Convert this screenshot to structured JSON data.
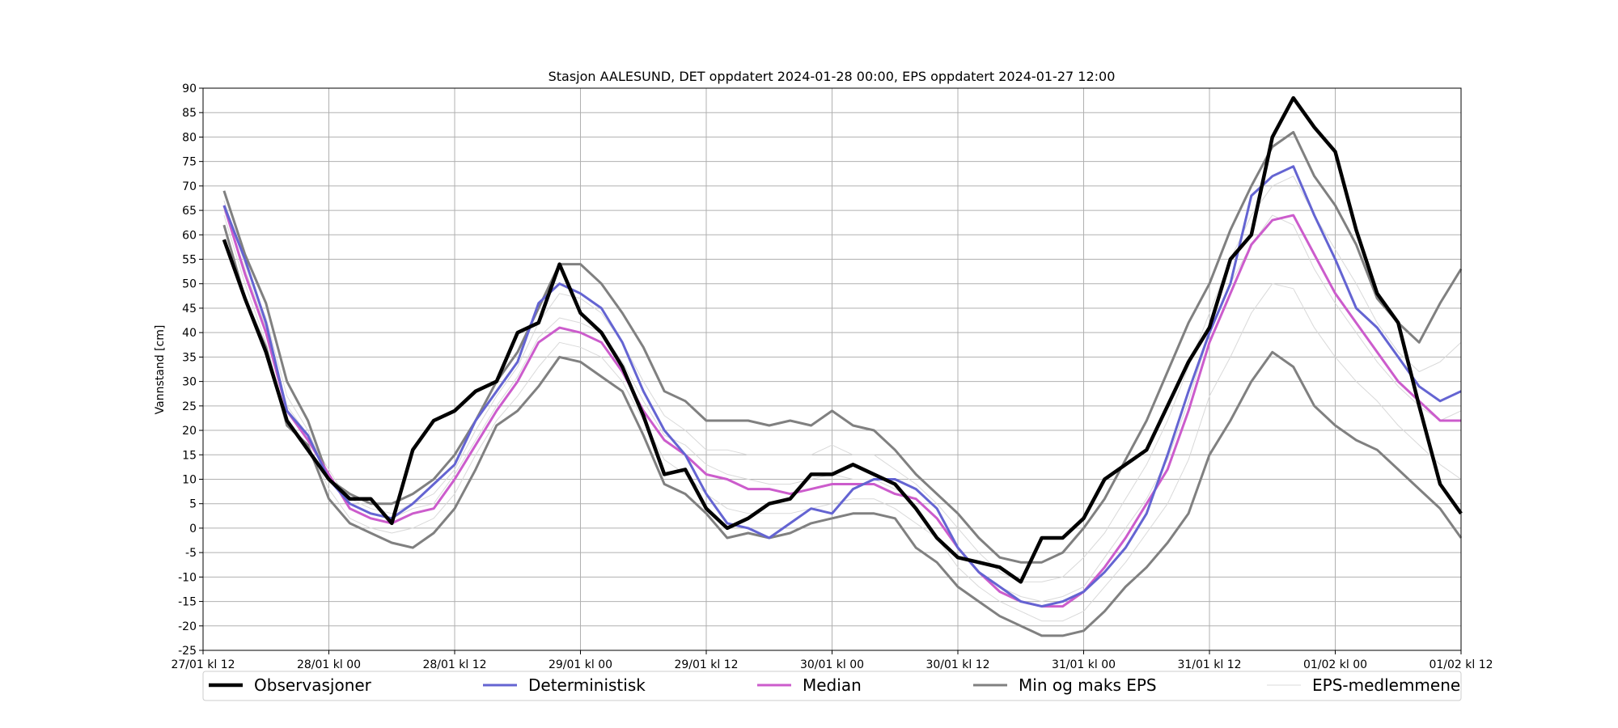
{
  "chart_data": {
    "type": "line",
    "title": "Stasjon AALESUND, DET oppdatert 2024-01-28 00:00, EPS oppdatert 2024-01-27 12:00",
    "y_label": "Vannstand [cm]",
    "grid": true,
    "xlim": [
      0,
      120
    ],
    "xticks": [
      {
        "value": 0,
        "label": "27/01 kl 12"
      },
      {
        "value": 12,
        "label": "28/01 kl 00"
      },
      {
        "value": 24,
        "label": "28/01 kl 12"
      },
      {
        "value": 36,
        "label": "29/01 kl 00"
      },
      {
        "value": 48,
        "label": "29/01 kl 12"
      },
      {
        "value": 60,
        "label": "30/01 kl 00"
      },
      {
        "value": 72,
        "label": "30/01 kl 12"
      },
      {
        "value": 84,
        "label": "31/01 kl 00"
      },
      {
        "value": 96,
        "label": "31/01 kl 12"
      },
      {
        "value": 108,
        "label": "01/02 kl 00"
      },
      {
        "value": 120,
        "label": "01/02 kl 12"
      }
    ],
    "ylim": [
      -25,
      90
    ],
    "yticks": [
      -25,
      -20,
      -15,
      -10,
      -5,
      0,
      5,
      10,
      15,
      20,
      25,
      30,
      35,
      40,
      45,
      50,
      55,
      60,
      65,
      70,
      75,
      80,
      85,
      90
    ],
    "x": [
      2,
      4,
      6,
      8,
      10,
      12,
      14,
      16,
      18,
      20,
      22,
      24,
      26,
      28,
      30,
      32,
      34,
      36,
      38,
      40,
      42,
      44,
      46,
      48,
      50,
      52,
      54,
      56,
      58,
      60,
      62,
      64,
      66,
      68,
      70,
      72,
      74,
      76,
      78,
      80,
      82,
      84,
      86,
      88,
      90,
      92,
      94,
      96,
      98,
      100,
      102,
      104,
      106,
      108,
      110,
      112,
      114,
      116,
      118,
      120
    ],
    "series": [
      {
        "name": "Observasjoner",
        "color": "#000000",
        "values": [
          59,
          47,
          36,
          22,
          16,
          10,
          6,
          6,
          1,
          16,
          22,
          24,
          28,
          30,
          40,
          42,
          54,
          44,
          40,
          33,
          23,
          11,
          12,
          4,
          0,
          2,
          5,
          6,
          11,
          11,
          13,
          11,
          9,
          4,
          -2,
          -6,
          -7,
          -8,
          -11,
          -2,
          -2,
          2,
          10,
          13,
          16,
          25,
          34,
          41,
          55,
          60,
          80,
          88,
          82,
          77,
          61,
          48,
          42,
          25,
          9,
          3
        ]
      },
      {
        "name": "Deterministisk",
        "color": "#6464d2",
        "values": [
          66,
          55,
          42,
          24,
          19,
          10,
          5,
          3,
          2,
          5,
          9,
          13,
          22,
          28,
          34,
          46,
          50,
          48,
          45,
          38,
          28,
          20,
          15,
          7,
          1,
          0,
          -2,
          1,
          4,
          3,
          8,
          10,
          10,
          8,
          4,
          -4,
          -9,
          -12,
          -15,
          -16,
          -15,
          -13,
          -9,
          -4,
          3,
          15,
          28,
          40,
          50,
          68,
          72,
          74,
          64,
          55,
          45,
          41,
          35,
          29,
          26,
          28
        ]
      },
      {
        "name": "Median",
        "color": "#cc5ccc",
        "values": [
          66,
          52,
          40,
          24,
          18,
          11,
          4,
          2,
          1,
          3,
          4,
          10,
          17,
          24,
          30,
          38,
          41,
          40,
          38,
          32,
          24,
          18,
          15,
          11,
          10,
          8,
          8,
          7,
          8,
          9,
          9,
          9,
          7,
          6,
          2,
          -4,
          -9,
          -13,
          -15,
          -16,
          -16,
          -13,
          -8,
          -2,
          5,
          12,
          24,
          38,
          48,
          58,
          63,
          64,
          56,
          48,
          42,
          36,
          30,
          26,
          22,
          22
        ]
      },
      {
        "name": "Min og maks EPS",
        "color": "#808080",
        "max": [
          69,
          56,
          46,
          30,
          22,
          10,
          7,
          5,
          5,
          7,
          10,
          15,
          22,
          30,
          36,
          45,
          54,
          54,
          50,
          44,
          37,
          28,
          26,
          22,
          22,
          22,
          21,
          22,
          21,
          24,
          21,
          20,
          16,
          11,
          7,
          3,
          -2,
          -6,
          -7,
          -7,
          -5,
          0,
          6,
          14,
          22,
          32,
          42,
          50,
          61,
          70,
          78,
          81,
          72,
          66,
          58,
          47,
          42,
          38,
          46,
          53
        ],
        "min": [
          62,
          47,
          37,
          21,
          17,
          6,
          1,
          -1,
          -3,
          -4,
          -1,
          4,
          12,
          21,
          24,
          29,
          35,
          34,
          31,
          28,
          19,
          9,
          7,
          3,
          -2,
          -1,
          -2,
          -1,
          1,
          2,
          3,
          3,
          2,
          -4,
          -7,
          -12,
          -15,
          -18,
          -20,
          -22,
          -22,
          -21,
          -17,
          -12,
          -8,
          -3,
          3,
          15,
          22,
          30,
          36,
          33,
          25,
          21,
          18,
          16,
          12,
          8,
          4,
          -2
        ]
      },
      {
        "name": "EPS-medlemmene",
        "color": "#d9d9d9",
        "members": [
          [
            67,
            54,
            43,
            27,
            20,
            10,
            6,
            4,
            3,
            5,
            7,
            12,
            20,
            27,
            33,
            42,
            48,
            47,
            44,
            38,
            30,
            23,
            20,
            16,
            16,
            15,
            15,
            15,
            15,
            17,
            15,
            15,
            12,
            9,
            5,
            0,
            -5,
            -9,
            -11,
            -11,
            -10,
            -6,
            -1,
            6,
            13,
            22,
            33,
            44,
            55,
            64,
            70,
            72,
            64,
            57,
            50,
            42,
            36,
            32,
            34,
            38
          ],
          [
            65,
            53,
            41,
            25,
            19,
            12,
            5,
            3,
            2,
            4,
            5,
            11,
            18,
            25,
            31,
            39,
            43,
            42,
            40,
            34,
            26,
            19,
            17,
            13,
            11,
            10,
            9,
            9,
            10,
            11,
            10,
            10,
            8,
            6,
            2,
            -4,
            -9,
            -12,
            -14,
            -15,
            -14,
            -12,
            -6,
            0,
            6,
            14,
            26,
            40,
            50,
            58,
            64,
            62,
            53,
            46,
            40,
            34,
            29,
            25,
            22,
            24
          ],
          [
            64,
            50,
            38,
            22,
            17,
            8,
            2,
            0,
            -1,
            0,
            2,
            7,
            15,
            22,
            27,
            33,
            38,
            37,
            35,
            30,
            22,
            14,
            11,
            7,
            4,
            3,
            3,
            3,
            4,
            5,
            6,
            6,
            4,
            1,
            -2,
            -8,
            -12,
            -15,
            -17,
            -19,
            -19,
            -17,
            -12,
            -7,
            -1,
            5,
            14,
            27,
            35,
            44,
            50,
            49,
            41,
            35,
            30,
            26,
            21,
            17,
            13,
            10
          ]
        ]
      }
    ]
  }
}
